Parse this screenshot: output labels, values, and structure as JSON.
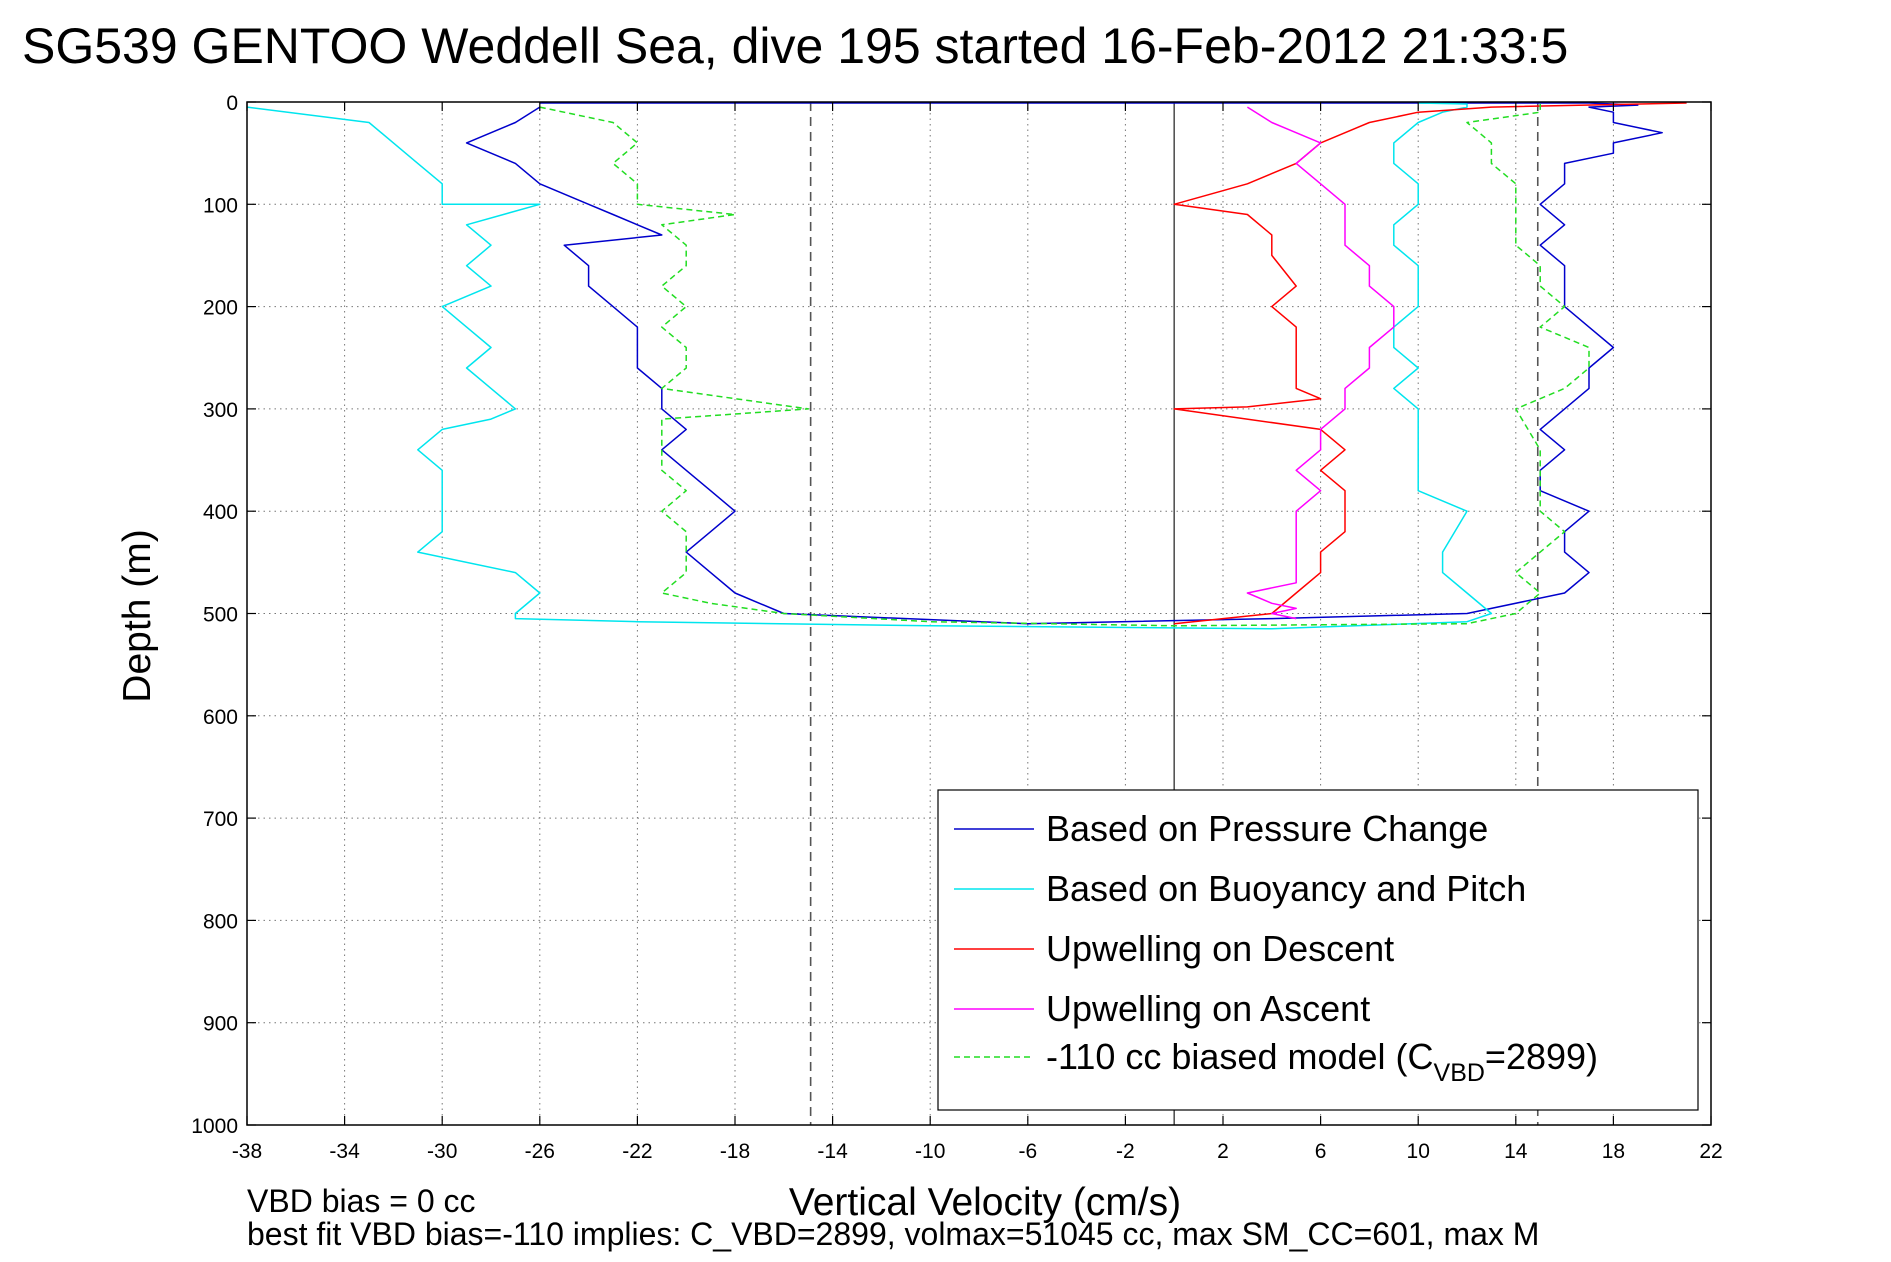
{
  "chart_data": {
    "type": "line",
    "title": "SG539 GENTOO Weddell Sea, dive 195 started 16-Feb-2012 21:33:5",
    "xlabel": "Vertical Velocity (cm/s)",
    "ylabel": "Depth (m)",
    "xlim": [
      -38,
      22
    ],
    "ylim": [
      1000,
      0
    ],
    "y_inverted": true,
    "grid": true,
    "x_ticks": [
      -38,
      -34,
      -30,
      -26,
      -22,
      -18,
      -14,
      -10,
      -6,
      -2,
      2,
      6,
      10,
      14,
      18,
      22
    ],
    "y_ticks": [
      0,
      100,
      200,
      300,
      400,
      500,
      600,
      700,
      800,
      900,
      1000
    ],
    "x_tick_labels": [
      "-38",
      "-34",
      "-30",
      "-26",
      "-22",
      "-18",
      "-14",
      "-10",
      "-6",
      "-2",
      "2",
      "6",
      "10",
      "14",
      "18",
      "22"
    ],
    "y_tick_labels": [
      "0",
      "100",
      "200",
      "300",
      "400",
      "500",
      "600",
      "700",
      "800",
      "900",
      "1000"
    ],
    "reference_lines": [
      {
        "x": -14.9,
        "style": "dashed",
        "color": "#555555"
      },
      {
        "x": 0,
        "style": "solid",
        "color": "#555555"
      },
      {
        "x": 14.9,
        "style": "dashed",
        "color": "#555555"
      }
    ],
    "legend_position": "bottom-right",
    "series": [
      {
        "name": "Based on Pressure Change",
        "color": "#0000cc",
        "style": "solid",
        "x": [
          -26,
          -27,
          -29,
          -27,
          -26,
          -24,
          -23,
          -22,
          -21,
          -25,
          -24,
          -24,
          -23,
          -22,
          -22,
          -22,
          -21,
          -21,
          -21,
          -20,
          -21,
          -20,
          -19,
          -18,
          -19,
          -20,
          -19,
          -18,
          -16,
          -6,
          4,
          12,
          16,
          17,
          16,
          16,
          17,
          15,
          15,
          16,
          15,
          16,
          17,
          17,
          18,
          17,
          16,
          16,
          16,
          15,
          16,
          15,
          16,
          16,
          18,
          18,
          20,
          18,
          18,
          18,
          17,
          19,
          18,
          17,
          16,
          14,
          13,
          12,
          0,
          -26
        ],
        "y": [
          5,
          20,
          40,
          60,
          80,
          100,
          110,
          120,
          130,
          140,
          160,
          180,
          200,
          220,
          240,
          260,
          280,
          290,
          300,
          320,
          340,
          360,
          380,
          400,
          420,
          440,
          460,
          480,
          500,
          510,
          505,
          500,
          480,
          460,
          440,
          420,
          400,
          380,
          360,
          340,
          320,
          300,
          280,
          260,
          240,
          220,
          200,
          180,
          160,
          140,
          120,
          100,
          80,
          60,
          50,
          40,
          30,
          20,
          15,
          10,
          5,
          3,
          2,
          1,
          1,
          1,
          1,
          1,
          1,
          1
        ]
      },
      {
        "name": "Based on Buoyancy and Pitch",
        "color": "#00e5ee",
        "style": "solid",
        "x": [
          -38,
          -33,
          -32,
          -31,
          -30,
          -30,
          -26,
          -29,
          -28,
          -29,
          -28,
          -30,
          -29,
          -28,
          -29,
          -28,
          -27,
          -28,
          -30,
          -31,
          -30,
          -30,
          -30,
          -31,
          -27,
          -26,
          -27,
          -27,
          -22,
          -10,
          4,
          12,
          13,
          12,
          11,
          11,
          12,
          10,
          10,
          10,
          10,
          10,
          9,
          10,
          9,
          9,
          10,
          10,
          10,
          9,
          9,
          10,
          10,
          9,
          9,
          10,
          11,
          12,
          12,
          10
        ],
        "y": [
          5,
          20,
          40,
          60,
          80,
          100,
          100,
          120,
          140,
          160,
          180,
          200,
          220,
          240,
          260,
          280,
          300,
          310,
          320,
          340,
          360,
          380,
          420,
          440,
          460,
          480,
          500,
          505,
          508,
          512,
          515,
          508,
          500,
          480,
          460,
          440,
          400,
          380,
          360,
          340,
          320,
          300,
          280,
          260,
          240,
          220,
          200,
          180,
          160,
          140,
          120,
          100,
          80,
          60,
          40,
          20,
          10,
          5,
          2,
          1
        ]
      },
      {
        "name": "Upwelling on Descent",
        "color": "#ff0000",
        "style": "solid",
        "x": [
          21,
          13,
          10,
          8,
          6,
          5,
          3,
          0,
          3,
          4,
          4,
          5,
          4,
          5,
          5,
          5,
          5,
          6,
          3,
          0,
          6,
          7,
          6,
          7,
          7,
          7,
          6,
          6,
          5,
          4,
          2,
          0
        ],
        "y": [
          1,
          5,
          10,
          20,
          40,
          60,
          80,
          100,
          110,
          130,
          150,
          180,
          200,
          220,
          240,
          260,
          280,
          290,
          298,
          300,
          320,
          340,
          360,
          380,
          400,
          420,
          440,
          460,
          480,
          500,
          505,
          510
        ]
      },
      {
        "name": "Upwelling on Ascent",
        "color": "#ff00ff",
        "style": "solid",
        "x": [
          3,
          4,
          6,
          5,
          6,
          7,
          7,
          7,
          8,
          8,
          9,
          9,
          8,
          8,
          7,
          7,
          6,
          6,
          5,
          6,
          5,
          5,
          5,
          5,
          5,
          3,
          4,
          5,
          4,
          5
        ],
        "y": [
          5,
          20,
          40,
          60,
          80,
          100,
          120,
          140,
          160,
          180,
          200,
          220,
          240,
          260,
          280,
          300,
          320,
          340,
          360,
          380,
          400,
          420,
          440,
          460,
          470,
          480,
          490,
          495,
          500,
          505
        ]
      },
      {
        "name": "-110 cc biased model (C",
        "name_sub": "VBD",
        "name_suffix": "=2899)",
        "color": "#22dd22",
        "style": "dashed",
        "x": [
          -26,
          -23,
          -22,
          -23,
          -22,
          -22,
          -18,
          -21,
          -20,
          -20,
          -21,
          -20,
          -21,
          -20,
          -20,
          -21,
          -15,
          -21,
          -21,
          -21,
          -21,
          -20,
          -21,
          -20,
          -20,
          -20,
          -21,
          -19,
          -16,
          -10,
          0,
          12,
          14,
          15,
          14,
          15,
          16,
          15,
          15,
          15,
          15,
          14,
          16,
          17,
          17,
          15,
          16,
          15,
          15,
          14,
          14,
          14,
          14,
          13,
          13,
          12,
          15,
          15,
          15,
          15
        ],
        "y": [
          5,
          20,
          40,
          60,
          80,
          100,
          110,
          120,
          140,
          160,
          180,
          200,
          220,
          240,
          260,
          280,
          300,
          310,
          320,
          340,
          360,
          380,
          400,
          420,
          440,
          460,
          480,
          490,
          500,
          508,
          512,
          510,
          500,
          480,
          460,
          440,
          420,
          400,
          380,
          360,
          340,
          300,
          280,
          260,
          240,
          220,
          200,
          180,
          160,
          140,
          120,
          100,
          80,
          60,
          40,
          20,
          10,
          5,
          2,
          1
        ]
      }
    ],
    "annotations": [
      "VBD bias = 0 cc",
      "best fit VBD bias=-110 implies: C_VBD=2899, volmax=51045 cc, max SM_CC=601, max M"
    ]
  }
}
